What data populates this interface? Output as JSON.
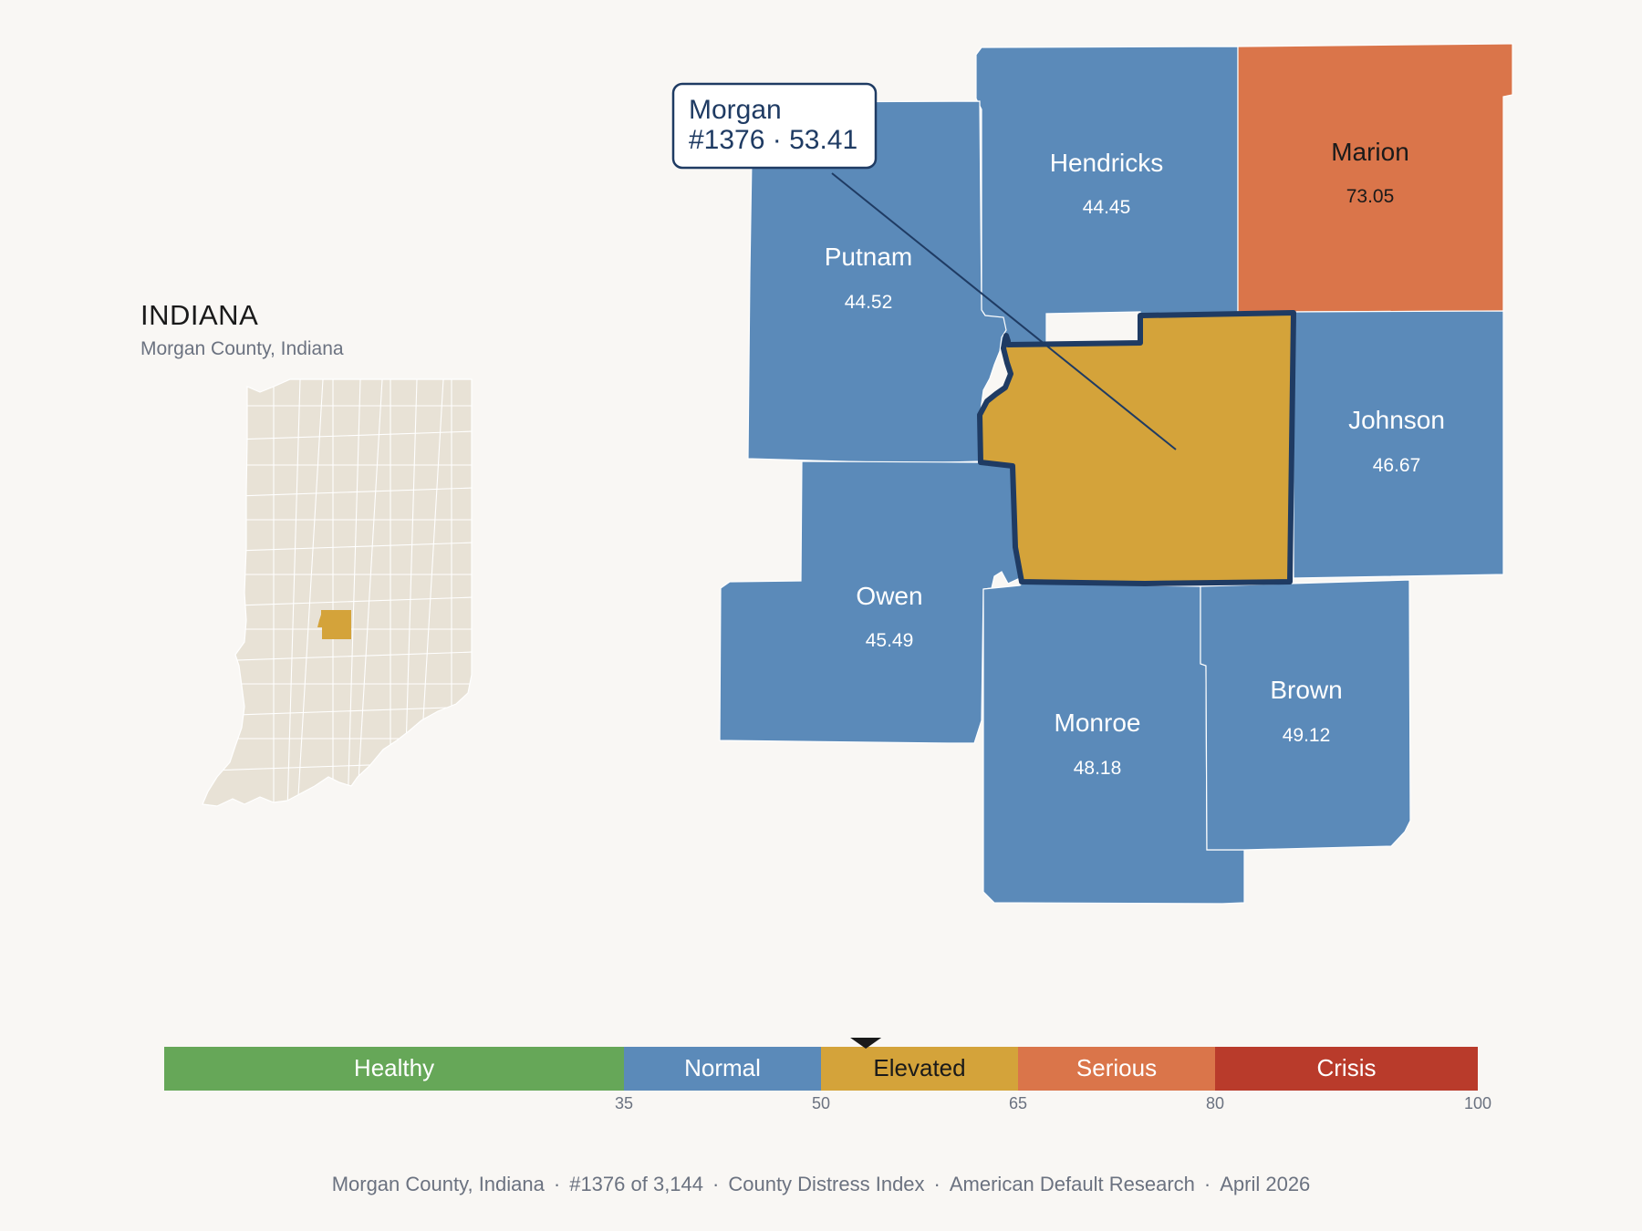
{
  "state": {
    "name": "INDIANA",
    "subtitle": "Morgan County, Indiana"
  },
  "callout": {
    "name": "Morgan",
    "detail": "#1376 · 53.41"
  },
  "colors": {
    "normal": "#5b8ab9",
    "elevated": "#d4a33a",
    "serious": "#da754a",
    "crisis": "#b93b2b",
    "healthy": "#66a758",
    "outline": "#1f3b63",
    "inset_fill": "#e8e2d6"
  },
  "counties": [
    {
      "name": "Hendricks",
      "value": "44.45",
      "category": "normal"
    },
    {
      "name": "Marion",
      "value": "73.05",
      "category": "serious"
    },
    {
      "name": "Putnam",
      "value": "44.52",
      "category": "normal"
    },
    {
      "name": "Johnson",
      "value": "46.67",
      "category": "normal"
    },
    {
      "name": "Owen",
      "value": "45.49",
      "category": "normal"
    },
    {
      "name": "Monroe",
      "value": "48.18",
      "category": "normal"
    },
    {
      "name": "Brown",
      "value": "49.12",
      "category": "normal"
    },
    {
      "name": "Morgan",
      "value": "53.41",
      "category": "elevated",
      "selected": true
    }
  ],
  "legend": {
    "bands": [
      {
        "label": "Healthy",
        "from": 0,
        "to": 35,
        "category": "healthy"
      },
      {
        "label": "Normal",
        "from": 35,
        "to": 50,
        "category": "normal"
      },
      {
        "label": "Elevated",
        "from": 50,
        "to": 65,
        "category": "elevated"
      },
      {
        "label": "Serious",
        "from": 65,
        "to": 80,
        "category": "serious"
      },
      {
        "label": "Crisis",
        "from": 80,
        "to": 100,
        "category": "crisis"
      }
    ],
    "ticks": [
      "35",
      "50",
      "65",
      "80",
      "100"
    ],
    "marker_value": 53.41
  },
  "footer": [
    "Morgan County, Indiana",
    "#1376 of 3,144",
    "County Distress Index",
    "American Default Research",
    "April 2026"
  ]
}
